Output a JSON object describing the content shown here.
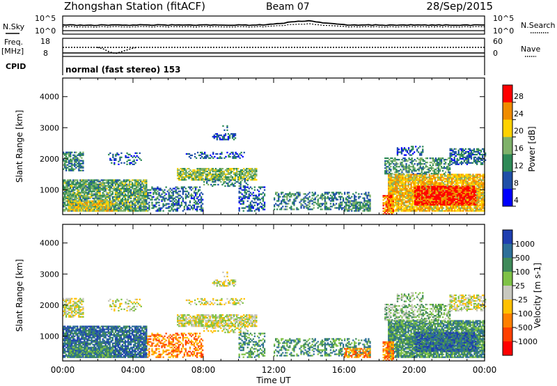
{
  "header": {
    "station": "Zhongshan Station (fitACF)",
    "beam": "Beam 07",
    "date": "28/Sep/2015"
  },
  "top_panels": {
    "nsky_label": "N.Sky",
    "nsearch_label": "N.Search",
    "nsky_ticks": [
      "10^5",
      "10^0"
    ],
    "nsearch_ticks": [
      "10^5",
      "10^0"
    ],
    "freq_label_1": "Freq.",
    "freq_label_2": "[MHz]",
    "freq_ticks": [
      "18",
      "8"
    ],
    "nave_label": "Nave",
    "nave_ticks": [
      "60",
      "0"
    ],
    "cpid_label": "CPID",
    "cpid_text": "normal (fast stereo) 153"
  },
  "chart_data": [
    {
      "type": "heatmap",
      "name": "power",
      "ylabel": "Slant Range [km]",
      "yticks": [
        1000,
        2000,
        3000,
        4000
      ],
      "ylim": [
        200,
        4600
      ],
      "xlim": [
        0,
        24
      ],
      "colorbar_label": "Power [dB]",
      "colorbar_ticks": [
        "28",
        "24",
        "20",
        "16",
        "12",
        "8",
        "4"
      ],
      "colors": [
        "#0000ff",
        "#1f4fa8",
        "#2e8a57",
        "#7fb26a",
        "#ffd200",
        "#f08c00",
        "#ff0000"
      ],
      "color_levels": [
        0,
        4,
        8,
        12,
        16,
        20,
        24,
        28
      ]
    },
    {
      "type": "heatmap",
      "name": "velocity",
      "ylabel": "Slant Range [km]",
      "yticks": [
        1000,
        2000,
        3000,
        4000
      ],
      "ylim": [
        200,
        4600
      ],
      "xlim": [
        0,
        24
      ],
      "colorbar_label": "Velocity [m s-1]",
      "colorbar_ticks": [
        "1000",
        "500",
        "100",
        "25",
        "-25",
        "-100",
        "-500",
        "-1000"
      ],
      "colors": [
        "#1f3fb0",
        "#2d6f99",
        "#3f8a5a",
        "#7fc247",
        "#c8c8bf",
        "#ffc000",
        "#ff8000",
        "#ff4000",
        "#ff0000"
      ]
    }
  ],
  "xaxis": {
    "ticks": [
      "00:00",
      "04:00",
      "08:00",
      "12:00",
      "16:00",
      "20:00",
      "00:00"
    ],
    "label": "Time UT"
  }
}
